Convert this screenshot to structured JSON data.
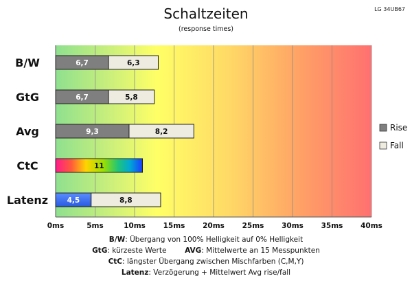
{
  "model_label": "LG 34UB67",
  "chart_data": {
    "type": "bar",
    "orientation": "horizontal",
    "stacked": true,
    "title": "Schaltzeiten",
    "subtitle": "(response times)",
    "categories": [
      "B/W",
      "GtG",
      "Avg",
      "CtC",
      "Latenz"
    ],
    "series": [
      {
        "name": "Rise",
        "values": [
          6.7,
          6.7,
          9.3,
          11,
          4.5
        ],
        "color": "#7f7f7f"
      },
      {
        "name": "Fall",
        "values": [
          6.3,
          5.8,
          8.2,
          0,
          8.8
        ],
        "color": "#eeece1"
      }
    ],
    "value_labels": [
      [
        "6,7",
        "6,3"
      ],
      [
        "6,7",
        "5,8"
      ],
      [
        "9,3",
        "8,2"
      ],
      [
        "11",
        ""
      ],
      [
        "4,5",
        "8,8"
      ]
    ],
    "special_bars": {
      "CtC": "rainbow gradient",
      "Latenz": "blue rise segment"
    },
    "xlim": [
      0,
      40
    ],
    "x_ticks": [
      "0ms",
      "5ms",
      "10ms",
      "15ms",
      "20ms",
      "25ms",
      "30ms",
      "35ms",
      "40ms"
    ],
    "x_tick_values": [
      0,
      5,
      10,
      15,
      20,
      25,
      30,
      35,
      40
    ],
    "background": "horizontal gradient green to yellow to red",
    "grid": "vertical",
    "legend_position": "right"
  },
  "footnotes": {
    "line1_label": "B/W",
    "line1_text": ":  Übergang von 100% Helligkeit auf 0% Helligkeit",
    "line2_label_a": "GtG",
    "line2_text_a": ": kürzeste  Werte",
    "line2_label_b": "AVG",
    "line2_text_b": ": Mittelwerte  an 15 Messpunkten",
    "line3_label": "CtC",
    "line3_text": ": längster Übergang  zwischen Mischfarben (C,M,Y)",
    "line4_label": "Latenz",
    "line4_text": ": Verzögerung  + Mittelwert Avg rise/fall"
  }
}
